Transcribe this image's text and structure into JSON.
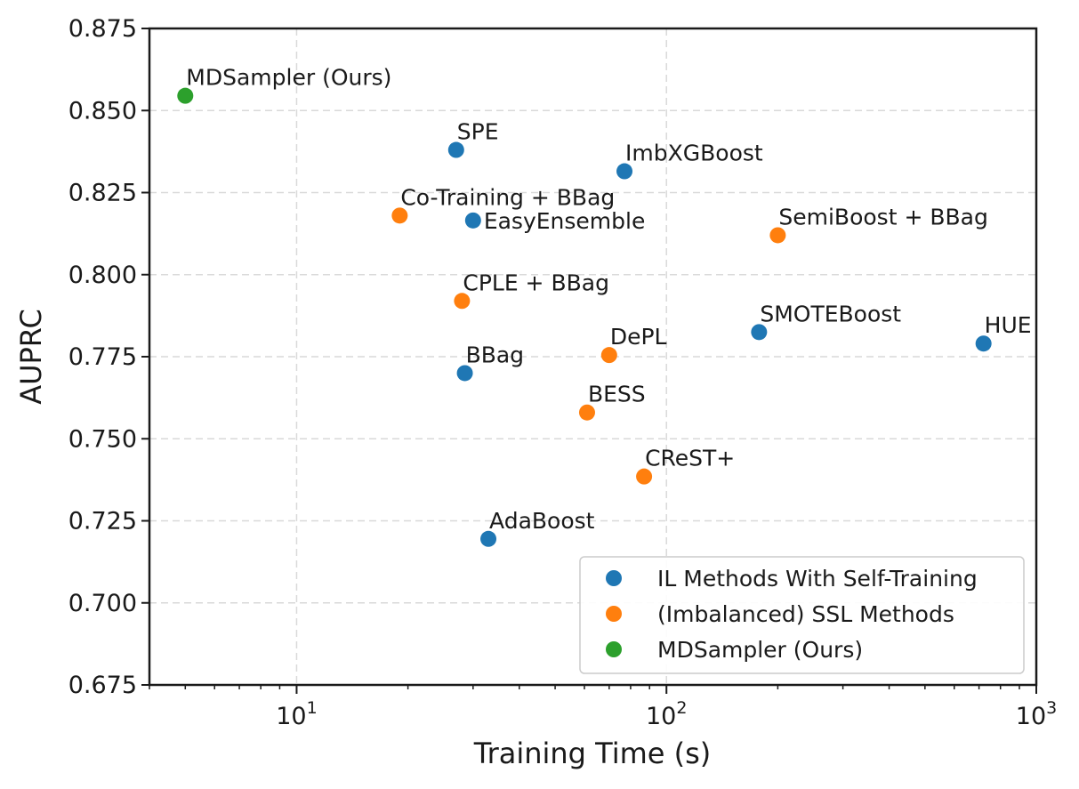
{
  "chart_data": {
    "type": "scatter",
    "xlabel": "Training Time (s)",
    "ylabel": "AUPRC",
    "x_scale": "log",
    "xlim": [
      4,
      1000
    ],
    "ylim": [
      0.675,
      0.875
    ],
    "x_ticks": [
      {
        "value": 10,
        "base": "10",
        "exp": "1"
      },
      {
        "value": 100,
        "base": "10",
        "exp": "2"
      },
      {
        "value": 1000,
        "base": "10",
        "exp": "3"
      }
    ],
    "y_ticks": [
      "0.675",
      "0.700",
      "0.725",
      "0.750",
      "0.775",
      "0.800",
      "0.825",
      "0.850",
      "0.875"
    ],
    "grid": true,
    "legend_position": "lower-right",
    "series": [
      {
        "name": "IL Methods With Self-Training",
        "color": "#1f77b4",
        "points": [
          {
            "label": "SPE",
            "x": 27,
            "y": 0.838
          },
          {
            "label": "ImbXGBoost",
            "x": 77,
            "y": 0.8315
          },
          {
            "label": "EasyEnsemble",
            "x": 30,
            "y": 0.8165
          },
          {
            "label": "SMOTEBoost",
            "x": 178,
            "y": 0.7825
          },
          {
            "label": "HUE",
            "x": 720,
            "y": 0.779
          },
          {
            "label": "BBag",
            "x": 28.5,
            "y": 0.77
          },
          {
            "label": "AdaBoost",
            "x": 33,
            "y": 0.7195
          }
        ]
      },
      {
        "name": "(Imbalanced) SSL Methods",
        "color": "#ff7f0e",
        "points": [
          {
            "label": "Co-Training + BBag",
            "x": 19,
            "y": 0.818
          },
          {
            "label": "SemiBoost + BBag",
            "x": 200,
            "y": 0.812
          },
          {
            "label": "CPLE + BBag",
            "x": 28,
            "y": 0.792
          },
          {
            "label": "DePL",
            "x": 70,
            "y": 0.7755
          },
          {
            "label": "BESS",
            "x": 61,
            "y": 0.758
          },
          {
            "label": "CReST+",
            "x": 87,
            "y": 0.7385
          }
        ]
      },
      {
        "name": "MDSampler (Ours)",
        "color": "#2ca02c",
        "points": [
          {
            "label": "MDSampler (Ours)",
            "x": 5,
            "y": 0.8545
          }
        ]
      }
    ]
  }
}
